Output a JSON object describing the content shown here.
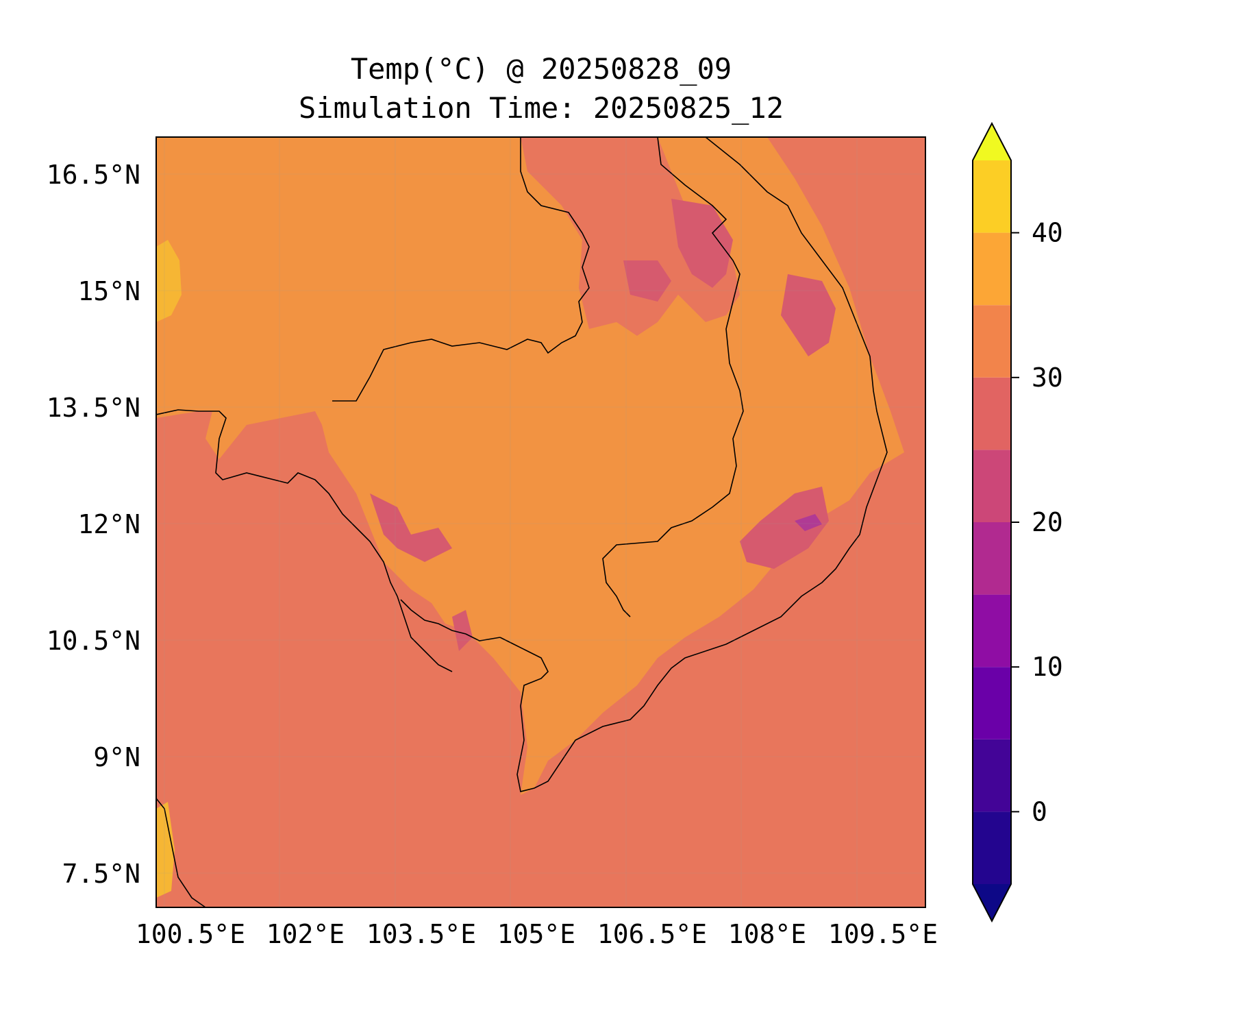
{
  "title": {
    "line1": "Temp(°C) @ 20250828_09",
    "line2": "Simulation Time: 20250825_12"
  },
  "map": {
    "lon_ticks": [
      "100.5°E",
      "102°E",
      "103.5°E",
      "105°E",
      "106.5°E",
      "108°E",
      "109.5°E"
    ],
    "lat_ticks": [
      "16.5°N",
      "15°N",
      "13.5°N",
      "12°N",
      "10.5°N",
      "9°N",
      "7.5°N"
    ],
    "lon_range": [
      100.5,
      110.4
    ],
    "lat_range": [
      7.1,
      17.0
    ]
  },
  "colorbar": {
    "levels": [
      -5,
      0,
      5,
      10,
      15,
      20,
      25,
      30,
      35,
      40,
      45
    ],
    "colors": [
      "#23058f",
      "#430497",
      "#6a00a8",
      "#8f0da4",
      "#b12a90",
      "#cc4778",
      "#e16462",
      "#f2844b",
      "#fca636",
      "#fcce25"
    ],
    "under_color": "#0d0887",
    "over_color": "#f0f921",
    "tick_labels": [
      "0",
      "10",
      "20",
      "30",
      "40"
    ],
    "tick_values": [
      0,
      10,
      20,
      30,
      40
    ]
  },
  "field_colors": {
    "ocean": "#e8765c",
    "land_warm": "#f29342",
    "cool_zone": "#d65a6e",
    "coolest_spot": "#b03a94",
    "hot_spot": "#f6b634"
  }
}
